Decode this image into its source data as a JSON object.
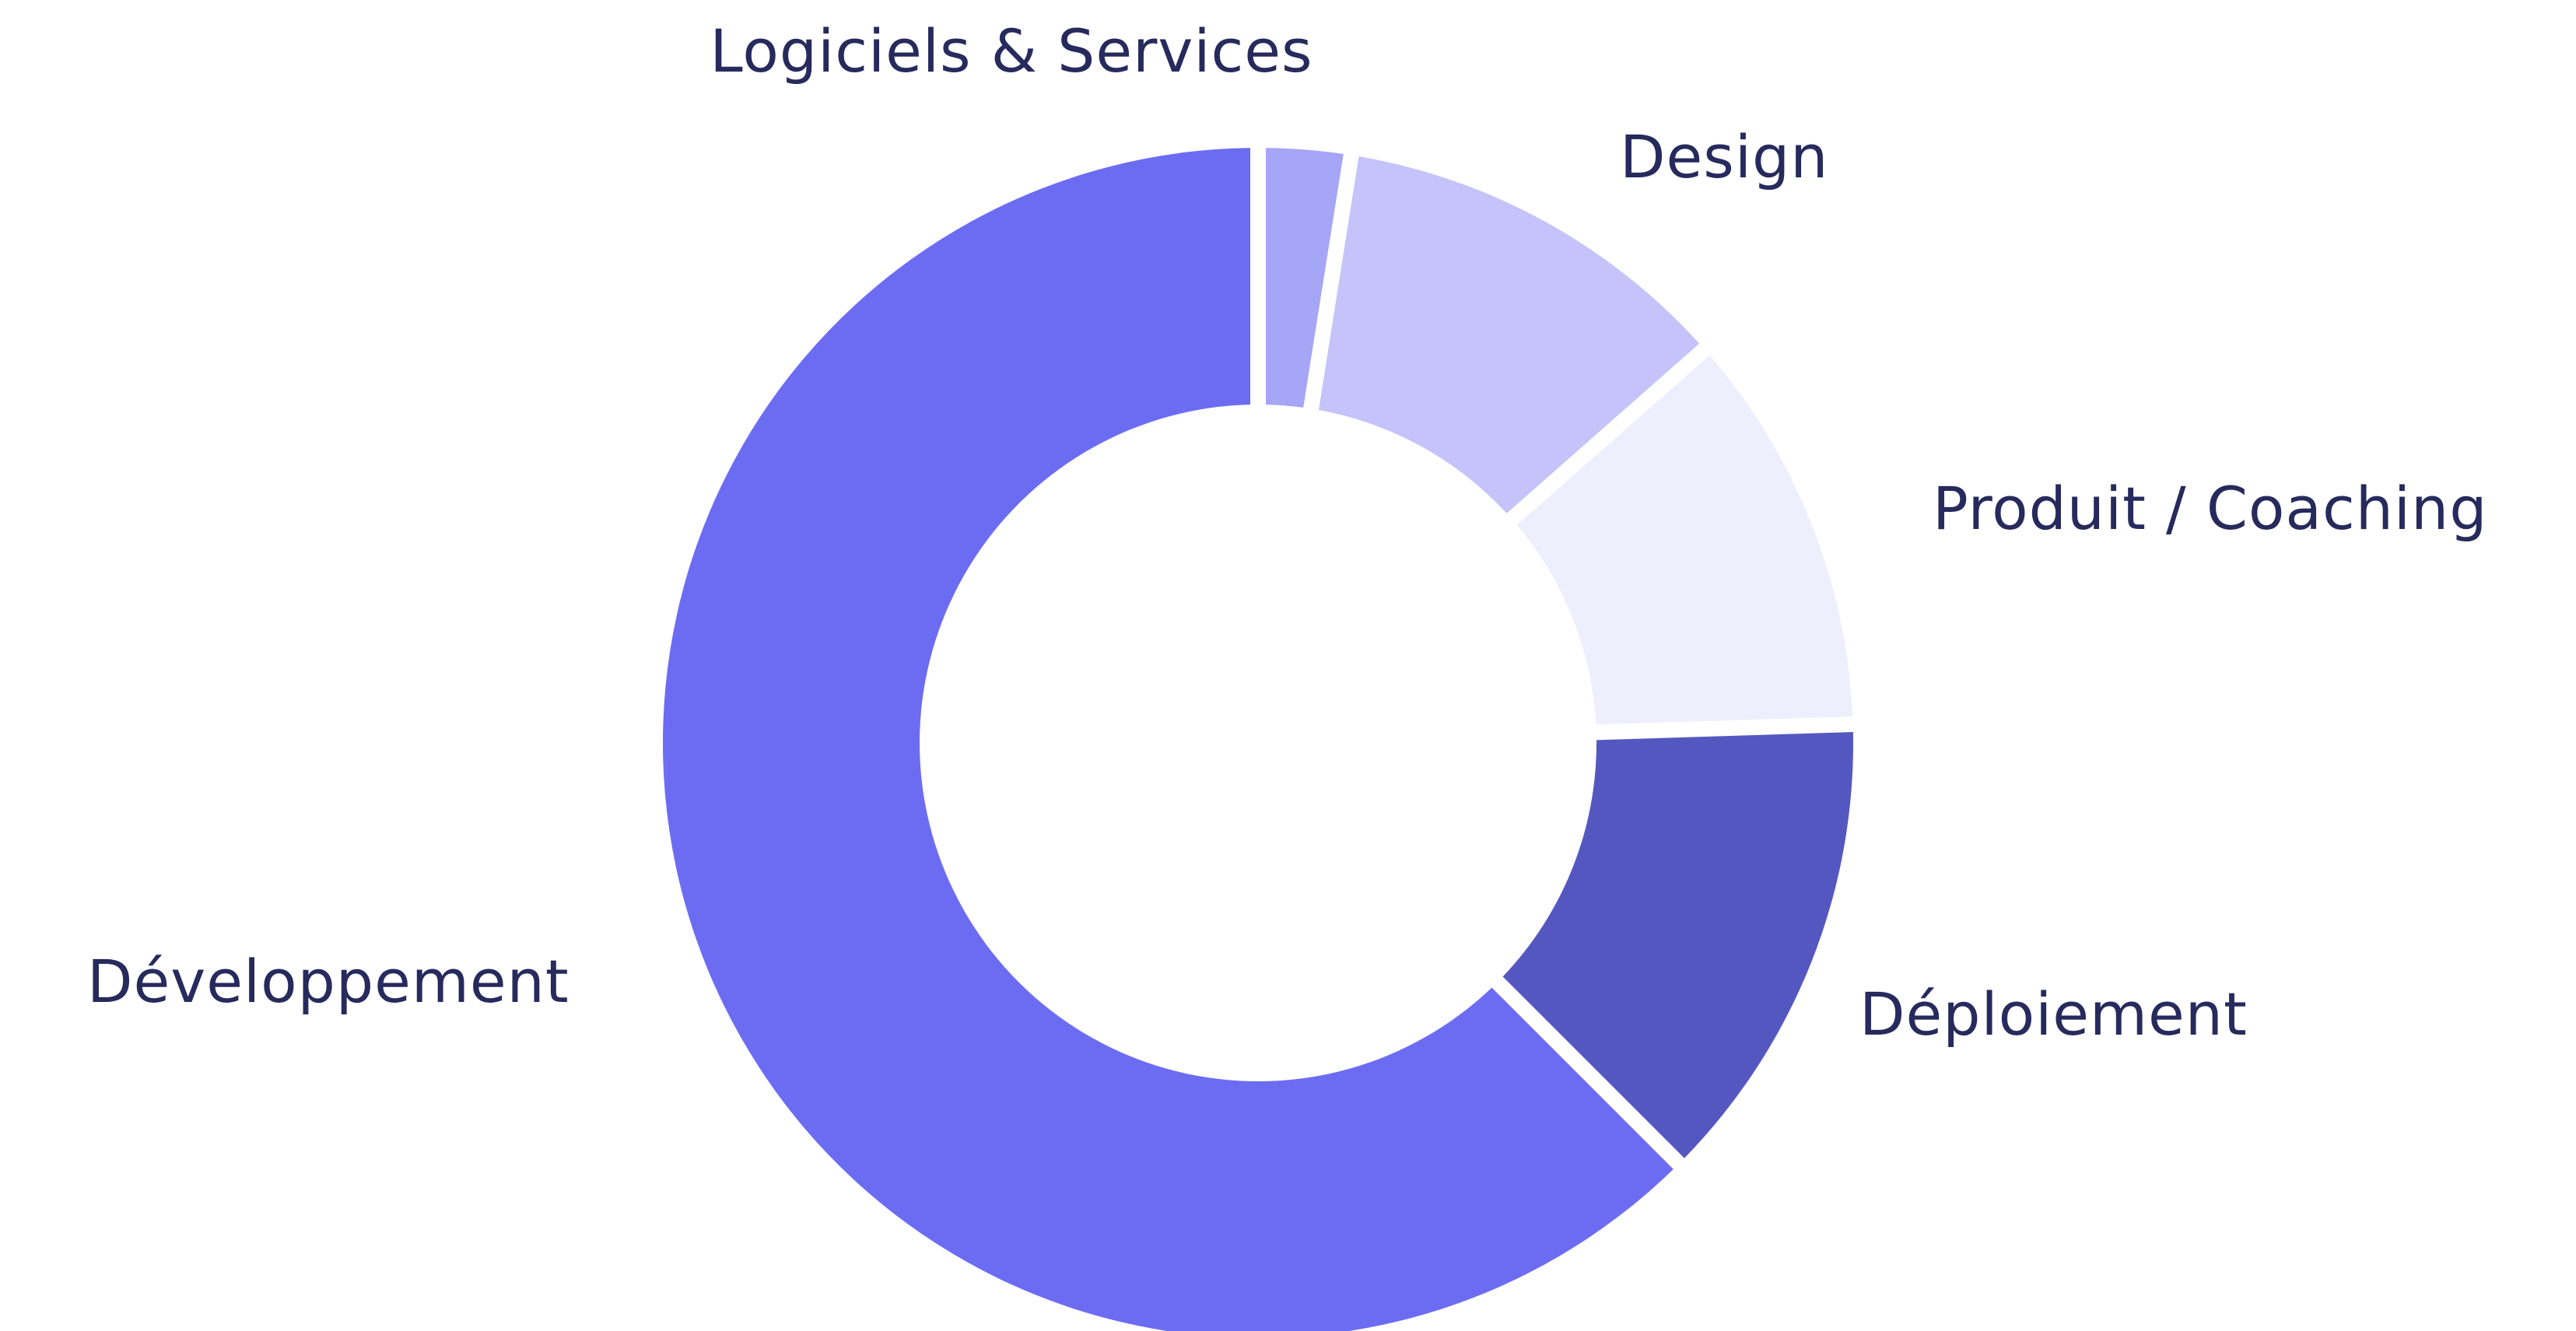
{
  "chart_data": {
    "type": "pie",
    "variant": "donut",
    "title": "",
    "start_angle_deg": 0,
    "direction": "clockwise",
    "label_color": "#262a5c",
    "background": "#ffffff",
    "slices": [
      {
        "label": "Logiciels & Services",
        "value": 2.5,
        "color": "#a5a6f6"
      },
      {
        "label": "Design",
        "value": 11.0,
        "color": "#c5c3fa"
      },
      {
        "label": "Produit / Coaching",
        "value": 11.0,
        "color": "#efeefc"
      },
      {
        "label": "Déploiement",
        "value": 13.0,
        "color": "#5557c1"
      },
      {
        "label": "Développement",
        "value": 62.5,
        "color": "#6c6cf3"
      }
    ]
  }
}
